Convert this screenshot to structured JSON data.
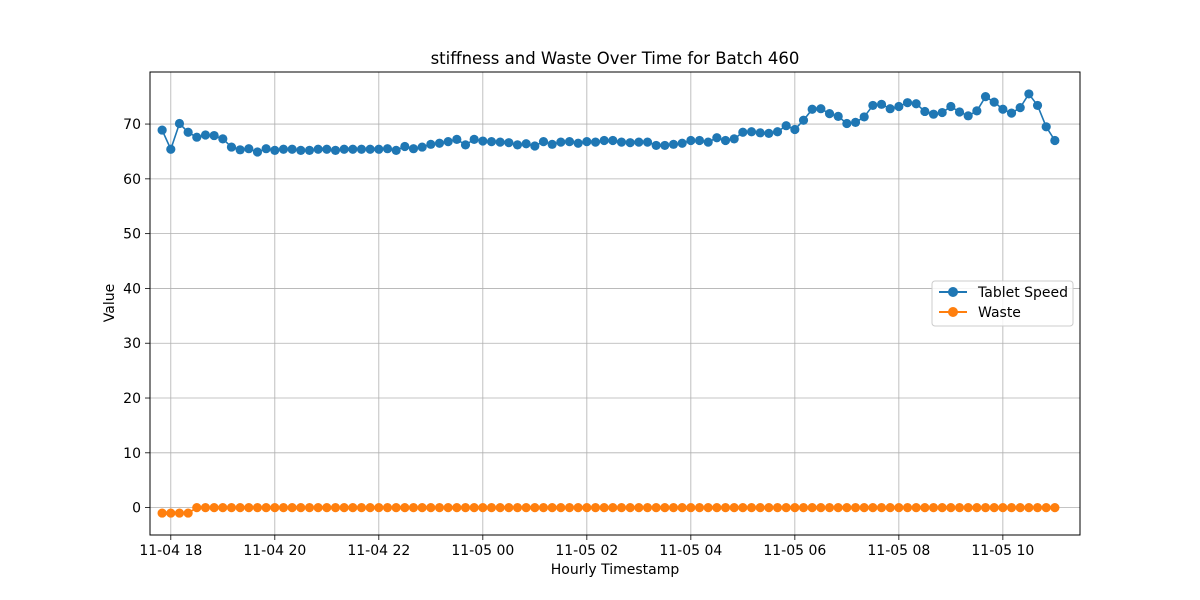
{
  "chart_data": {
    "type": "line",
    "title": "stiffness and Waste Over Time for Batch 460",
    "xlabel": "Hourly Timestamp",
    "ylabel": "Value",
    "ylim": [
      -5,
      79.5
    ],
    "yticks": [
      "0",
      "10",
      "20",
      "30",
      "40",
      "50",
      "60",
      "70"
    ],
    "x_start": "2023-11-04 17:50",
    "x_step_minutes": 10,
    "x_ticks": [
      {
        "at": "2023-11-04 18:00",
        "label": "11-04 18"
      },
      {
        "at": "2023-11-04 20:00",
        "label": "11-04 20"
      },
      {
        "at": "2023-11-04 22:00",
        "label": "11-04 22"
      },
      {
        "at": "2023-11-05 00:00",
        "label": "11-05 00"
      },
      {
        "at": "2023-11-05 02:00",
        "label": "11-05 02"
      },
      {
        "at": "2023-11-05 04:00",
        "label": "11-05 04"
      },
      {
        "at": "2023-11-05 06:00",
        "label": "11-05 06"
      },
      {
        "at": "2023-11-05 08:00",
        "label": "11-05 08"
      },
      {
        "at": "2023-11-05 10:00",
        "label": "11-05 10"
      }
    ],
    "xlim": [
      "2023-11-04 17:36",
      "2023-11-05 11:29"
    ],
    "grid": true,
    "legend_position": "center-right",
    "series": [
      {
        "name": "Tablet Speed",
        "color": "#1f77b4",
        "marker": "circle",
        "values": [
          68.9,
          65.4,
          70.1,
          68.5,
          67.6,
          68.0,
          67.9,
          67.3,
          65.8,
          65.3,
          65.5,
          64.9,
          65.5,
          65.2,
          65.4,
          65.4,
          65.2,
          65.2,
          65.4,
          65.4,
          65.2,
          65.4,
          65.4,
          65.4,
          65.4,
          65.4,
          65.5,
          65.2,
          65.9,
          65.5,
          65.8,
          66.3,
          66.5,
          66.8,
          67.2,
          66.2,
          67.2,
          66.9,
          66.8,
          66.7,
          66.6,
          66.2,
          66.4,
          66.0,
          66.8,
          66.3,
          66.7,
          66.8,
          66.5,
          66.8,
          66.7,
          67.0,
          67.0,
          66.7,
          66.6,
          66.7,
          66.7,
          66.1,
          66.1,
          66.3,
          66.5,
          67.0,
          67.0,
          66.7,
          67.5,
          67.0,
          67.3,
          68.5,
          68.6,
          68.4,
          68.3,
          68.6,
          69.7,
          69.0,
          70.7,
          72.7,
          72.8,
          71.9,
          71.4,
          70.1,
          70.3,
          71.3,
          73.4,
          73.6,
          72.8,
          73.2,
          73.9,
          73.7,
          72.3,
          71.8,
          72.1,
          73.2,
          72.2,
          71.5,
          72.4,
          75.0,
          74.0,
          72.7,
          72.0,
          73.0,
          75.5,
          73.4,
          69.5,
          67.0
        ]
      },
      {
        "name": "Waste",
        "color": "#ff7f0e",
        "marker": "circle",
        "values": [
          -1.0,
          -1.0,
          -1.0,
          -1.0,
          0,
          0,
          0,
          0,
          0,
          0,
          0,
          0,
          0,
          0,
          0,
          0,
          0,
          0,
          0,
          0,
          0,
          0,
          0,
          0,
          0,
          0,
          0,
          0,
          0,
          0,
          0,
          0,
          0,
          0,
          0,
          0,
          0,
          0,
          0,
          0,
          0,
          0,
          0,
          0,
          0,
          0,
          0,
          0,
          0,
          0,
          0,
          0,
          0,
          0,
          0,
          0,
          0,
          0,
          0,
          0,
          0,
          0,
          0,
          0,
          0,
          0,
          0,
          0,
          0,
          0,
          0,
          0,
          0,
          0,
          0,
          0,
          0,
          0,
          0,
          0,
          0,
          0,
          0,
          0,
          0,
          0,
          0,
          0,
          0,
          0,
          0,
          0,
          0,
          0,
          0,
          0,
          0,
          0,
          0,
          0,
          0,
          0,
          0,
          0
        ]
      }
    ]
  }
}
